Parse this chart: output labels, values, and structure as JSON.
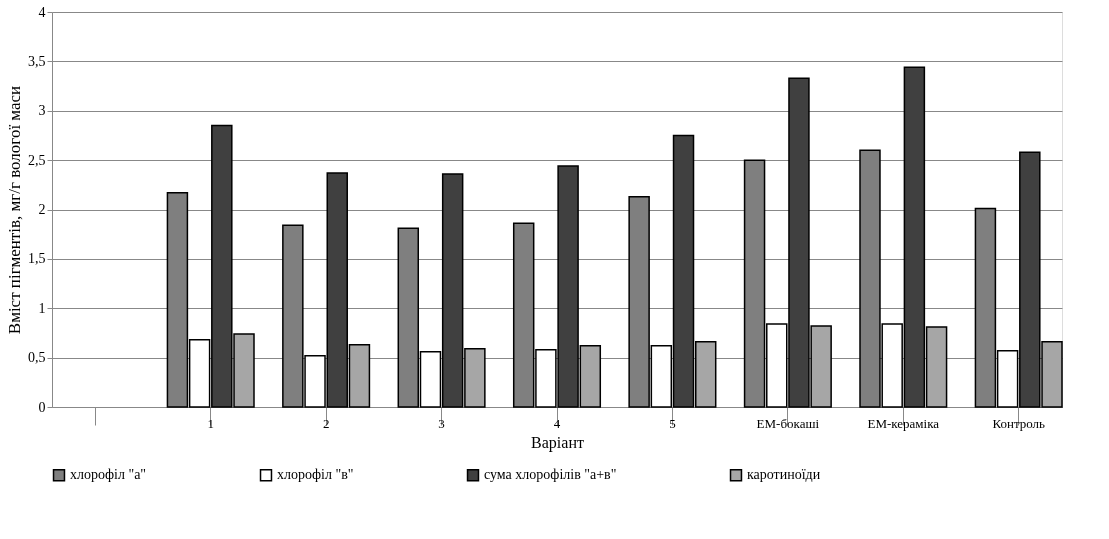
{
  "chart_data": {
    "type": "bar",
    "xlabel": "Варіант",
    "ylabel": "Вміст пігментів, мг/г вологої маси",
    "categories": [
      null,
      "1",
      "2",
      "3",
      "4",
      "5",
      "ЕМ-бокаші",
      "ЕМ-кераміка",
      "Контроль"
    ],
    "series": [
      {
        "name": "хлорофіл \"а\"",
        "color": "#7f7f7f",
        "values": [
          null,
          2.17,
          1.84,
          1.81,
          1.86,
          2.13,
          2.5,
          2.6,
          2.01
        ]
      },
      {
        "name": "хлорофіл \"в\"",
        "color": "#ffffff",
        "values": [
          null,
          0.68,
          0.52,
          0.56,
          0.58,
          0.62,
          0.84,
          0.84,
          0.57
        ]
      },
      {
        "name": "сума хлорофілів \"а+в\"",
        "color": "#404040",
        "values": [
          null,
          2.85,
          2.37,
          2.36,
          2.44,
          2.75,
          3.33,
          3.44,
          2.58
        ]
      },
      {
        "name": "каротиноїди",
        "color": "#a6a6a6",
        "values": [
          null,
          0.74,
          0.63,
          0.59,
          0.62,
          0.66,
          0.82,
          0.81,
          0.66
        ]
      }
    ],
    "ylim": [
      0,
      4
    ],
    "yticks": [
      0,
      {
        "value": 0.5,
        "label": "0,5"
      },
      1,
      {
        "value": 1.5,
        "label": "1,5"
      },
      2,
      {
        "value": 2.5,
        "label": "2,5"
      },
      3,
      {
        "value": 3.5,
        "label": "3,5"
      },
      4
    ],
    "grid": "y",
    "legend": "bottom"
  }
}
